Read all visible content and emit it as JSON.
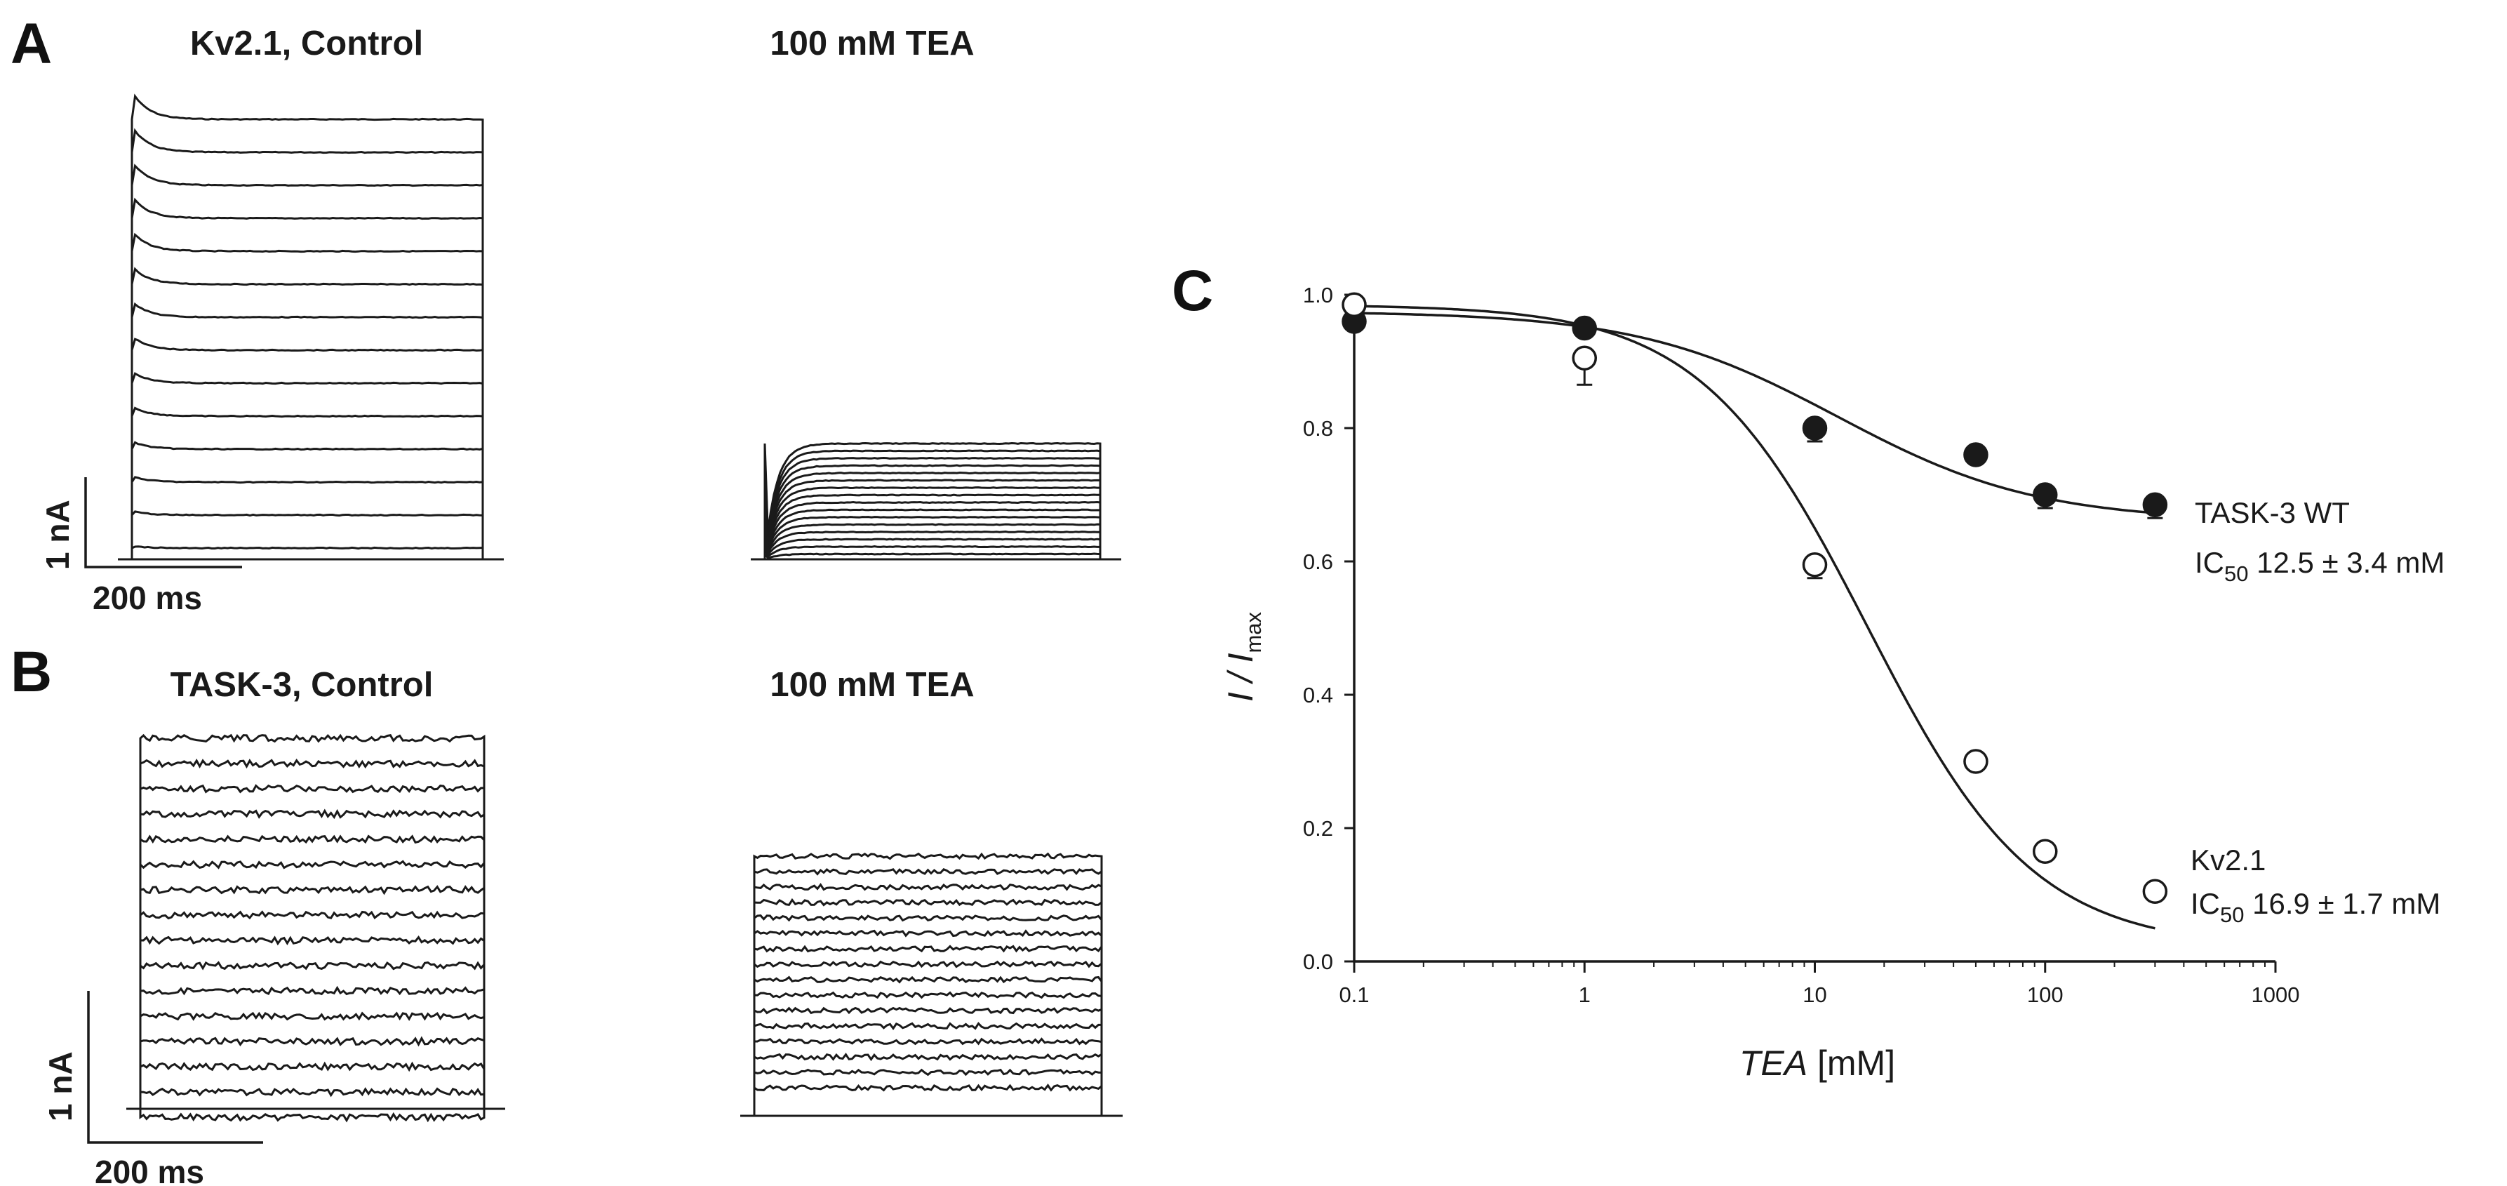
{
  "panels": {
    "a": {
      "letter": "A",
      "title_control": "Kv2.1, Control",
      "title_tea": "100 mM TEA",
      "scale_current": "1 nA",
      "scale_time": "200 ms"
    },
    "b": {
      "letter": "B",
      "title_control": "TASK-3, Control",
      "title_tea": "100 mM TEA",
      "scale_current": "1 nA",
      "scale_time": "200 ms"
    },
    "c": {
      "letter": "C"
    }
  },
  "chart_data": {
    "type": "scatter",
    "xscale": "log",
    "xlim": [
      0.1,
      1000
    ],
    "ylim": [
      0.0,
      1.0
    ],
    "x_ticks": [
      "0.1",
      "1",
      "10",
      "100",
      "1000"
    ],
    "y_ticks": [
      "0.0",
      "0.2",
      "0.4",
      "0.6",
      "0.8",
      "1.0"
    ],
    "xlabel": {
      "italic": "TEA",
      "rest": " [mM]"
    },
    "ylabel": {
      "main": "I / I",
      "sub": "max"
    },
    "series": [
      {
        "name": "TASK-3 WT",
        "ic50_label": "IC",
        "ic50_sub": "50",
        "ic50_value": " 12.5 ± 3.4 mM",
        "marker": "filled-circle",
        "x": [
          0.1,
          1,
          10,
          50,
          100,
          300
        ],
        "y": [
          0.96,
          0.95,
          0.8,
          0.76,
          0.7,
          0.685
        ],
        "err": [
          0.01,
          0.01,
          0.02,
          0.01,
          0.02,
          0.02
        ],
        "fit": {
          "ic50": 12.5,
          "bottom": 0.66,
          "top": 0.975,
          "hill": 1.0
        }
      },
      {
        "name": "Kv2.1",
        "ic50_label": "IC",
        "ic50_sub": "50",
        "ic50_value": " 16.9 ± 1.7 mM",
        "marker": "open-circle",
        "x": [
          0.1,
          1,
          10,
          50,
          100,
          300
        ],
        "y": [
          0.985,
          0.905,
          0.595,
          0.3,
          0.165,
          0.105
        ],
        "err": [
          0.01,
          0.04,
          0.02,
          0.01,
          0.01,
          0.01
        ],
        "fit": {
          "ic50": 16.9,
          "bottom": 0.02,
          "top": 0.985,
          "hill": 1.2
        }
      }
    ]
  },
  "traces": {
    "a_control": {
      "n_sweeps": 14,
      "peak_overshoot": true
    },
    "a_tea": {
      "n_sweeps": 16
    },
    "b_control": {
      "n_sweeps": 16
    },
    "b_tea": {
      "n_sweeps": 16
    }
  },
  "colors": {
    "ink": "#1a1a1a",
    "background": "#ffffff"
  }
}
